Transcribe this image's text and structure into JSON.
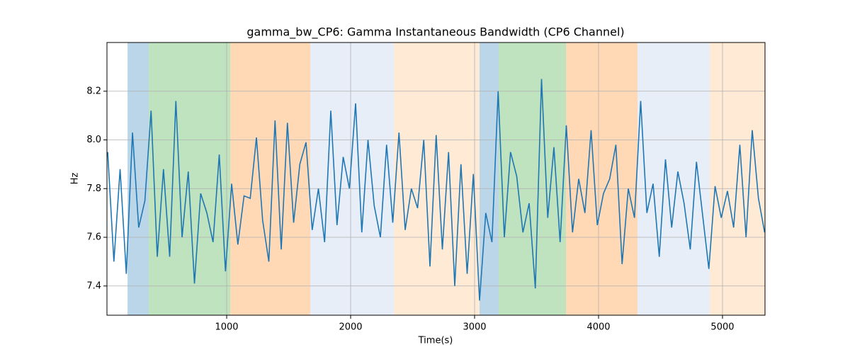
{
  "chart_data": {
    "type": "line",
    "title": "gamma_bw_CP6: Gamma Instantaneous Bandwidth (CP6 Channel)",
    "x_label": "Time(s)",
    "y_label": "Hz",
    "xlim": [
      34,
      5343
    ],
    "ylim": [
      7.28,
      8.4
    ],
    "xticks": [
      1000,
      2000,
      3000,
      4000,
      5000
    ],
    "yticks": [
      7.4,
      7.6,
      7.8,
      {
        "value": 8,
        "label": "8.0"
      },
      8.2
    ],
    "grid": true,
    "span_alpha": 0.3,
    "spans": [
      {
        "start": 200,
        "end": 371,
        "color": "#1f77b4"
      },
      {
        "start": 371,
        "end": 1029,
        "color": "#2ca02c"
      },
      {
        "start": 1029,
        "end": 1674,
        "color": "#ff7f0e"
      },
      {
        "start": 1674,
        "end": 2349,
        "color": "#aec7e8"
      },
      {
        "start": 2349,
        "end": 3040,
        "color": "#ffbb78"
      },
      {
        "start": 3040,
        "end": 3194,
        "color": "#1f77b4"
      },
      {
        "start": 3194,
        "end": 3737,
        "color": "#2ca02c"
      },
      {
        "start": 3737,
        "end": 4314,
        "color": "#ff7f0e"
      },
      {
        "start": 4314,
        "end": 4897,
        "color": "#aec7e8"
      },
      {
        "start": 4897,
        "end": 5343,
        "color": "#ffbb78"
      }
    ],
    "x": [
      40,
      90,
      140,
      190,
      240,
      290,
      340,
      390,
      440,
      490,
      540,
      590,
      640,
      690,
      740,
      790,
      840,
      890,
      940,
      990,
      1040,
      1090,
      1140,
      1190,
      1240,
      1290,
      1340,
      1390,
      1440,
      1490,
      1540,
      1590,
      1640,
      1690,
      1740,
      1790,
      1840,
      1890,
      1940,
      1990,
      2040,
      2090,
      2140,
      2190,
      2240,
      2290,
      2340,
      2390,
      2440,
      2490,
      2540,
      2590,
      2640,
      2690,
      2740,
      2790,
      2840,
      2890,
      2940,
      2990,
      3040,
      3090,
      3140,
      3190,
      3240,
      3290,
      3340,
      3390,
      3440,
      3490,
      3540,
      3590,
      3640,
      3690,
      3740,
      3790,
      3840,
      3890,
      3940,
      3990,
      4040,
      4090,
      4140,
      4190,
      4240,
      4290,
      4340,
      4390,
      4440,
      4490,
      4540,
      4590,
      4640,
      4690,
      4740,
      4790,
      4840,
      4890,
      4940,
      4990,
      5040,
      5090,
      5140,
      5190,
      5240,
      5290,
      5340
    ],
    "series": [
      {
        "name": "gamma_bw_CP6",
        "color": "#1f77b4",
        "values": [
          7.95,
          7.5,
          7.88,
          7.45,
          8.03,
          7.64,
          7.75,
          8.12,
          7.52,
          7.88,
          7.52,
          8.16,
          7.6,
          7.87,
          7.41,
          7.78,
          7.7,
          7.58,
          7.94,
          7.46,
          7.82,
          7.57,
          7.77,
          7.76,
          8.01,
          7.67,
          7.5,
          8.08,
          7.55,
          8.07,
          7.66,
          7.9,
          7.99,
          7.63,
          7.8,
          7.58,
          8.12,
          7.65,
          7.93,
          7.8,
          8.15,
          7.62,
          8.0,
          7.73,
          7.6,
          7.98,
          7.66,
          8.03,
          7.63,
          7.8,
          7.72,
          8.0,
          7.48,
          8.02,
          7.55,
          7.95,
          7.4,
          7.9,
          7.45,
          7.86,
          7.34,
          7.7,
          7.58,
          8.2,
          7.6,
          7.95,
          7.85,
          7.62,
          7.74,
          7.39,
          8.25,
          7.68,
          7.97,
          7.58,
          8.06,
          7.62,
          7.84,
          7.7,
          8.04,
          7.65,
          7.78,
          7.84,
          7.98,
          7.49,
          7.8,
          7.68,
          8.16,
          7.7,
          7.82,
          7.52,
          7.92,
          7.64,
          7.87,
          7.74,
          7.55,
          7.91,
          7.69,
          7.47,
          7.81,
          7.68,
          7.79,
          7.64,
          7.98,
          7.6,
          8.04,
          7.76,
          7.62
        ]
      }
    ]
  }
}
